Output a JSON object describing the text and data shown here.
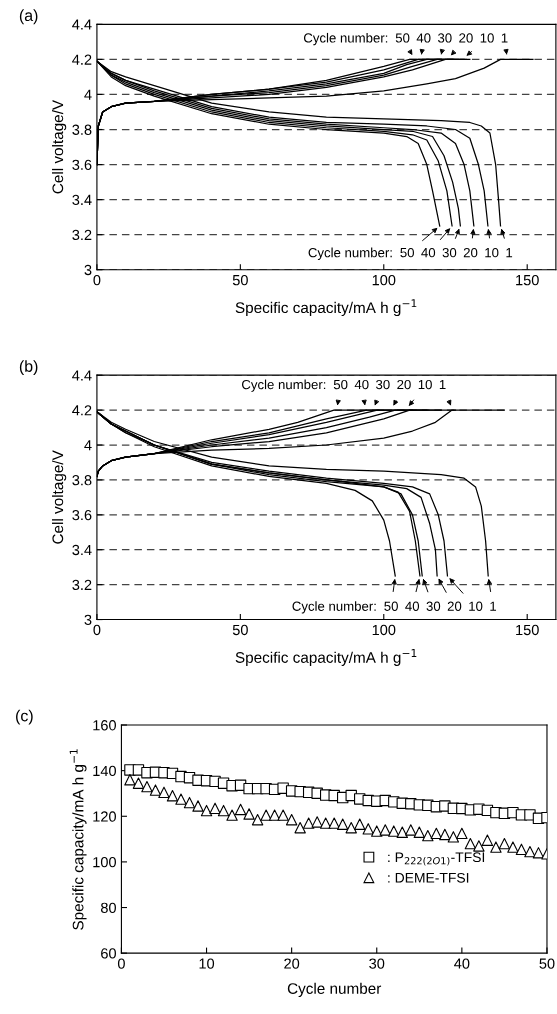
{
  "chart_data": [
    {
      "type": "line",
      "title": "(a)",
      "xlabel": "Specific capacity/mA h g$^{−1}$",
      "ylabel": "Cell voltage/V",
      "xlim": [
        0,
        160
      ],
      "xticks": [
        0,
        50,
        100,
        150
      ],
      "ylim": [
        3,
        4.4
      ],
      "yticks": [
        3,
        3.2,
        3.4,
        3.6,
        3.8,
        4,
        4.2,
        4.4
      ],
      "grid": "y",
      "line_style": "solid",
      "legend": false,
      "series": [
        {
          "color": "#000000",
          "x": [
            0,
            5,
            10,
            20,
            40,
            60,
            80,
            100,
            120,
            130,
            134,
            137,
            139,
            140,
            140.7
          ],
          "values": [
            4.19,
            4.13,
            4.1,
            4.05,
            3.95,
            3.9,
            3.87,
            3.86,
            3.85,
            3.84,
            3.82,
            3.78,
            3.6,
            3.4,
            3.25
          ]
        },
        {
          "color": "#000000",
          "x": [
            0,
            5,
            10,
            20,
            40,
            60,
            80,
            100,
            115,
            125,
            130,
            133,
            135,
            136.3
          ],
          "values": [
            4.19,
            4.12,
            4.08,
            4.03,
            3.93,
            3.87,
            3.84,
            3.83,
            3.82,
            3.8,
            3.75,
            3.6,
            3.45,
            3.25
          ]
        },
        {
          "color": "#000000",
          "x": [
            0,
            5,
            10,
            20,
            40,
            60,
            80,
            100,
            110,
            120,
            125,
            128,
            130,
            131.4
          ],
          "values": [
            4.19,
            4.12,
            4.08,
            4.02,
            3.92,
            3.86,
            3.83,
            3.81,
            3.8,
            3.78,
            3.72,
            3.6,
            3.45,
            3.25
          ]
        },
        {
          "color": "#000000",
          "x": [
            0,
            5,
            10,
            20,
            40,
            60,
            80,
            100,
            110,
            117,
            121,
            124,
            126,
            126.7
          ],
          "values": [
            4.19,
            4.11,
            4.07,
            4.01,
            3.91,
            3.85,
            3.82,
            3.8,
            3.79,
            3.76,
            3.65,
            3.5,
            3.35,
            3.25
          ]
        },
        {
          "color": "#000000",
          "x": [
            0,
            5,
            10,
            20,
            40,
            60,
            80,
            100,
            110,
            115,
            119,
            122,
            123.8
          ],
          "values": [
            4.19,
            4.11,
            4.06,
            4.0,
            3.9,
            3.84,
            3.81,
            3.79,
            3.77,
            3.74,
            3.62,
            3.45,
            3.25
          ]
        },
        {
          "color": "#000000",
          "x": [
            0,
            5,
            10,
            20,
            40,
            60,
            80,
            100,
            108,
            112,
            115,
            117,
            119.5
          ],
          "values": [
            4.19,
            4.1,
            4.05,
            3.99,
            3.89,
            3.83,
            3.8,
            3.78,
            3.76,
            3.72,
            3.6,
            3.45,
            3.25
          ]
        },
        {
          "color": "#000000",
          "x": [
            0,
            0.5,
            2,
            5,
            10,
            20,
            40,
            60,
            80,
            100,
            115,
            125,
            135,
            140.7,
            152
          ],
          "values": [
            3.6,
            3.82,
            3.9,
            3.93,
            3.95,
            3.96,
            3.97,
            3.98,
            3.99,
            4.02,
            4.06,
            4.09,
            4.15,
            4.2,
            4.2
          ]
        },
        {
          "color": "#000000",
          "x": [
            0,
            0.5,
            2,
            5,
            10,
            20,
            40,
            60,
            80,
            100,
            110,
            121.5,
            130
          ],
          "values": [
            3.6,
            3.82,
            3.9,
            3.93,
            3.95,
            3.96,
            3.98,
            4.0,
            4.04,
            4.1,
            4.14,
            4.2,
            4.2
          ]
        },
        {
          "color": "#000000",
          "x": [
            0,
            0.5,
            2,
            5,
            10,
            20,
            40,
            60,
            80,
            100,
            110,
            118.6,
            128
          ],
          "values": [
            3.6,
            3.82,
            3.9,
            3.93,
            3.95,
            3.96,
            3.99,
            4.01,
            4.05,
            4.11,
            4.16,
            4.2,
            4.2
          ]
        },
        {
          "color": "#000000",
          "x": [
            0,
            0.5,
            2,
            5,
            10,
            20,
            40,
            60,
            80,
            100,
            108,
            115,
            126
          ],
          "values": [
            3.6,
            3.82,
            3.9,
            3.93,
            3.95,
            3.96,
            3.99,
            4.02,
            4.06,
            4.12,
            4.17,
            4.2,
            4.2
          ]
        },
        {
          "color": "#000000",
          "x": [
            0,
            0.5,
            2,
            5,
            10,
            20,
            40,
            60,
            80,
            100,
            112,
            124
          ],
          "values": [
            3.6,
            3.82,
            3.9,
            3.93,
            3.95,
            3.96,
            4.0,
            4.03,
            4.07,
            4.14,
            4.2,
            4.2
          ]
        },
        {
          "color": "#000000",
          "x": [
            0,
            0.5,
            2,
            5,
            10,
            20,
            40,
            60,
            80,
            100,
            109,
            120
          ],
          "values": [
            3.6,
            3.82,
            3.9,
            3.93,
            3.95,
            3.96,
            4.0,
            4.03,
            4.08,
            4.16,
            4.2,
            4.2
          ]
        }
      ],
      "annotations": [
        "Cycle number:",
        {
          "text": "50",
          "x": 110.5,
          "y": 4.21
        },
        {
          "text": "40",
          "x": 113,
          "y": 4.21
        },
        {
          "text": "30",
          "x": 119.8,
          "y": 4.21
        },
        {
          "text": "20",
          "x": 122.7,
          "y": 4.21
        },
        {
          "text": "10",
          "x": 128,
          "y": 4.21
        },
        {
          "text": "1",
          "x": 143,
          "y": 4.21
        },
        "Cycle number:",
        {
          "text": "50",
          "x": 119.5,
          "y": 3.25
        },
        {
          "text": "40",
          "x": 123.8,
          "y": 3.25
        },
        {
          "text": "30",
          "x": 126.7,
          "y": 3.25
        },
        {
          "text": "20",
          "x": 131.4,
          "y": 3.25
        },
        {
          "text": "10",
          "x": 136.3,
          "y": 3.25
        },
        {
          "text": "1",
          "x": 140.7,
          "y": 3.25
        }
      ]
    },
    {
      "type": "line",
      "title": "(b)",
      "xlabel": "Specific capacity/mA h g$^{−1}$",
      "ylabel": "Cell voltage/V",
      "xlim": [
        0,
        160
      ],
      "xticks": [
        0,
        50,
        100,
        150
      ],
      "ylim": [
        3,
        4.4
      ],
      "yticks": [
        3,
        3.2,
        3.4,
        3.6,
        3.8,
        4,
        4.2,
        4.4
      ],
      "grid": "y",
      "line_style": "solid",
      "legend": false,
      "series": [
        {
          "color": "#000000",
          "x": [
            0,
            5,
            10,
            20,
            40,
            60,
            80,
            100,
            120,
            128,
            132,
            134,
            135.5,
            136.4
          ],
          "values": [
            4.19,
            4.13,
            4.09,
            4.02,
            3.93,
            3.88,
            3.86,
            3.85,
            3.83,
            3.81,
            3.76,
            3.65,
            3.45,
            3.25
          ]
        },
        {
          "color": "#000000",
          "x": [
            0,
            5,
            10,
            20,
            40,
            60,
            80,
            100,
            110,
            116,
            119,
            121,
            122.2
          ],
          "values": [
            4.19,
            4.12,
            4.08,
            4.0,
            3.9,
            3.85,
            3.81,
            3.78,
            3.76,
            3.72,
            3.6,
            3.45,
            3.25
          ]
        },
        {
          "color": "#000000",
          "x": [
            0,
            5,
            10,
            20,
            40,
            60,
            80,
            100,
            108,
            113,
            116,
            118,
            118.6
          ],
          "values": [
            4.19,
            4.12,
            4.08,
            4.0,
            3.89,
            3.84,
            3.8,
            3.77,
            3.75,
            3.7,
            3.55,
            3.4,
            3.25
          ]
        },
        {
          "color": "#000000",
          "x": [
            0,
            5,
            10,
            20,
            40,
            60,
            80,
            100,
            106,
            110,
            112,
            113.4
          ],
          "values": [
            4.19,
            4.12,
            4.08,
            4.0,
            3.89,
            3.84,
            3.8,
            3.76,
            3.72,
            3.6,
            3.45,
            3.25
          ]
        },
        {
          "color": "#000000",
          "x": [
            0,
            5,
            10,
            20,
            40,
            60,
            80,
            100,
            105,
            109,
            111,
            112.6
          ],
          "values": [
            4.19,
            4.12,
            4.07,
            4.0,
            3.89,
            3.83,
            3.79,
            3.76,
            3.73,
            3.62,
            3.45,
            3.25
          ]
        },
        {
          "color": "#000000",
          "x": [
            0,
            5,
            10,
            20,
            40,
            60,
            80,
            90,
            96,
            100,
            102,
            104
          ],
          "values": [
            4.19,
            4.12,
            4.07,
            3.99,
            3.88,
            3.82,
            3.78,
            3.74,
            3.68,
            3.57,
            3.45,
            3.25
          ]
        },
        {
          "color": "#000000",
          "x": [
            0,
            0.5,
            2,
            5,
            10,
            20,
            40,
            60,
            80,
            100,
            110,
            118,
            123.8,
            142
          ],
          "values": [
            3.82,
            3.85,
            3.88,
            3.91,
            3.93,
            3.95,
            3.97,
            3.98,
            4.0,
            4.04,
            4.08,
            4.13,
            4.2,
            4.2
          ]
        },
        {
          "color": "#000000",
          "x": [
            0,
            0.5,
            2,
            5,
            10,
            20,
            40,
            60,
            80,
            100,
            109,
            125
          ],
          "values": [
            3.82,
            3.85,
            3.88,
            3.91,
            3.93,
            3.95,
            3.99,
            4.02,
            4.07,
            4.15,
            4.2,
            4.2
          ]
        },
        {
          "color": "#000000",
          "x": [
            0,
            0.5,
            2,
            5,
            10,
            20,
            40,
            60,
            80,
            95,
            104,
            120
          ],
          "values": [
            3.82,
            3.85,
            3.88,
            3.91,
            3.93,
            3.95,
            4.0,
            4.04,
            4.1,
            4.16,
            4.2,
            4.2
          ]
        },
        {
          "color": "#000000",
          "x": [
            0,
            0.5,
            2,
            5,
            10,
            20,
            40,
            60,
            80,
            97.7,
            115
          ],
          "values": [
            3.82,
            3.85,
            3.88,
            3.91,
            3.93,
            3.95,
            4.01,
            4.06,
            4.13,
            4.2,
            4.2
          ]
        },
        {
          "color": "#000000",
          "x": [
            0,
            0.5,
            2,
            5,
            10,
            20,
            40,
            60,
            80,
            94,
            110
          ],
          "values": [
            3.82,
            3.85,
            3.88,
            3.91,
            3.93,
            3.95,
            4.02,
            4.07,
            4.15,
            4.2,
            4.2
          ]
        },
        {
          "color": "#000000",
          "x": [
            0,
            0.5,
            2,
            5,
            10,
            20,
            40,
            60,
            70,
            82.6,
            100
          ],
          "values": [
            3.82,
            3.85,
            3.88,
            3.91,
            3.93,
            3.95,
            4.03,
            4.09,
            4.13,
            4.2,
            4.2
          ]
        }
      ],
      "annotations": [
        "Cycle number:",
        {
          "text": "50",
          "x": 83.7,
          "y": 4.21
        },
        {
          "text": "40",
          "x": 93.6,
          "y": 4.21
        },
        {
          "text": "30",
          "x": 96.5,
          "y": 4.21
        },
        {
          "text": "20",
          "x": 102.9,
          "y": 4.21
        },
        {
          "text": "10",
          "x": 108.1,
          "y": 4.21
        },
        {
          "text": "1",
          "x": 123.8,
          "y": 4.21
        },
        "Cycle number:",
        {
          "text": "50",
          "x": 104,
          "y": 3.25
        },
        {
          "text": "40",
          "x": 112.6,
          "y": 3.25
        },
        {
          "text": "30",
          "x": 113.4,
          "y": 3.25
        },
        {
          "text": "20",
          "x": 118.6,
          "y": 3.25
        },
        {
          "text": "10",
          "x": 122.2,
          "y": 3.25
        },
        {
          "text": "1",
          "x": 136.4,
          "y": 3.25
        }
      ]
    },
    {
      "type": "scatter",
      "title": "(c)",
      "xlabel": "Cycle number",
      "ylabel": "Specific capacity/mA h g$^{−1}$",
      "xlim": [
        0,
        50
      ],
      "xticks": [
        0,
        10,
        20,
        30,
        40,
        50
      ],
      "ylim": [
        60,
        160
      ],
      "yticks": [
        60,
        80,
        100,
        120,
        140,
        160
      ],
      "grid": false,
      "legend": "bottom right",
      "x": [
        1,
        2,
        3,
        4,
        5,
        6,
        7,
        8,
        9,
        10,
        11,
        12,
        13,
        14,
        15,
        16,
        17,
        18,
        19,
        20,
        21,
        22,
        23,
        24,
        25,
        26,
        27,
        28,
        29,
        30,
        31,
        32,
        33,
        34,
        35,
        36,
        37,
        38,
        39,
        40,
        41,
        42,
        43,
        44,
        45,
        46,
        47,
        48,
        49,
        50
      ],
      "series": [
        {
          "name": ": P$_{222(2O1)}$-TFSI",
          "color": "#000000",
          "marker": "square",
          "values": [
            140.3,
            140.3,
            139.1,
            139.3,
            139.1,
            138.8,
            137.4,
            136.9,
            135.8,
            135.6,
            135.3,
            134.5,
            133.4,
            133.6,
            132.1,
            132.1,
            132.1,
            131.8,
            132.3,
            131.1,
            130.8,
            130.5,
            130.1,
            129.3,
            129.1,
            128.2,
            129.1,
            127.6,
            126.9,
            126.6,
            126.9,
            126.3,
            125.7,
            125.5,
            125.0,
            124.8,
            124.2,
            124.5,
            123.5,
            123.4,
            122.8,
            123.1,
            122.6,
            121.6,
            121.3,
            121.6,
            120.6,
            120.6,
            119.1,
            119.4
          ]
        },
        {
          "name": ": DEME-TFSI",
          "color": "#000000",
          "marker": "triangle",
          "values": [
            136,
            134.5,
            133,
            131.5,
            130.5,
            129,
            127.5,
            126,
            124.5,
            122.5,
            123.5,
            122.5,
            120.5,
            123,
            121,
            118.5,
            120.5,
            120.5,
            120.5,
            118.5,
            115,
            117,
            117.5,
            117,
            117,
            116.5,
            115,
            116.5,
            114.5,
            113.5,
            114,
            113.5,
            113,
            114,
            113,
            111.5,
            112.5,
            112,
            111,
            112.5,
            108,
            107,
            109.5,
            106.5,
            108,
            106.5,
            105.5,
            104.5,
            104,
            103.5
          ]
        }
      ]
    }
  ]
}
